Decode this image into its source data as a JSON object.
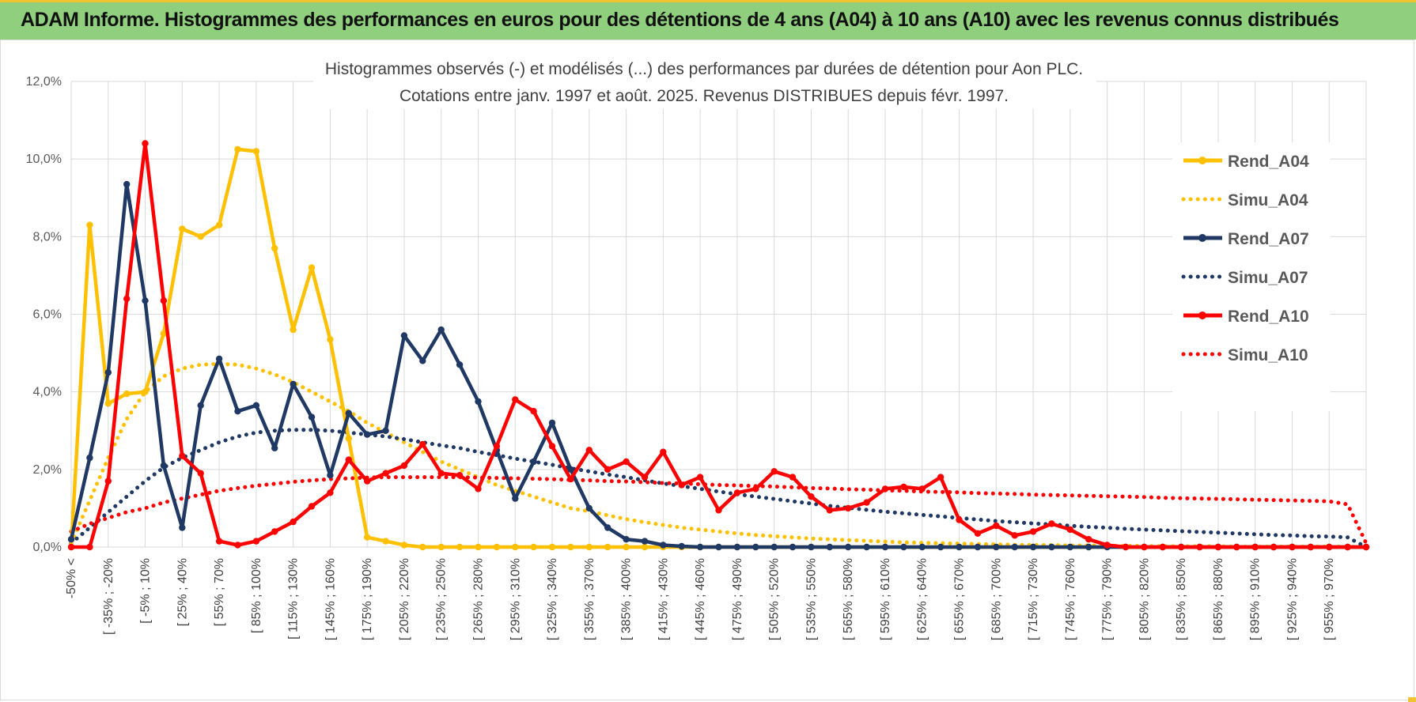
{
  "header": {
    "title": "ADAM Informe. Histogrammes des performances en euros pour des détentions de 4 ans (A04) à 10 ans (A10) avec les revenus connus distribués"
  },
  "colors": {
    "banner": "#8fcf7e",
    "a04": "#ffc000",
    "a07": "#1f3864",
    "a10": "#ff0000",
    "grid": "#d9d9d9"
  },
  "chart_data": {
    "type": "line",
    "title": "Histogrammes observés (-) et modélisés (...) des performances par durées de détention pour Aon PLC.",
    "subtitle": "Cotations entre janv. 1997 et août. 2025. Revenus DISTRIBUES depuis févr. 1997.",
    "ylim": [
      0,
      12
    ],
    "y_ticks": [
      "0,0%",
      "2,0%",
      "4,0%",
      "6,0%",
      "8,0%",
      "10,0%",
      "12,0%"
    ],
    "grid": true,
    "legend_position": "right",
    "x_tick_labels": [
      "-50% <",
      "[ -35% ; -20%",
      "[ -5% ; 10%",
      "[ 25% ; 40%",
      "[ 55% ; 70%",
      "[ 85% ; 100%",
      "[ 115% ; 130%",
      "[ 145% ; 160%",
      "[ 175% ; 190%",
      "[ 205% ; 220%",
      "[ 235% ; 250%",
      "[ 265% ; 280%",
      "[ 295% ; 310%",
      "[ 325% ; 340%",
      "[ 355% ; 370%",
      "[ 385% ; 400%",
      "[ 415% ; 430%",
      "[ 445% ; 460%",
      "[ 475% ; 490%",
      "[ 505% ; 520%",
      "[ 535% ; 550%",
      "[ 565% ; 580%",
      "[ 595% ; 610%",
      "[ 625% ; 640%",
      "[ 655% ; 670%",
      "[ 685% ; 700%",
      "[ 715% ; 730%",
      "[ 745% ; 760%",
      "[ 775% ; 790%",
      "[ 805% ; 820%",
      "[ 835% ; 850%",
      "[ 865% ; 880%",
      "[ 895% ; 910%",
      "[ 925% ; 940%",
      "[ 955% ; 970%"
    ],
    "series": [
      {
        "name": "Rend_A04",
        "style": "solid",
        "color": "#ffc000",
        "values": [
          0,
          8.3,
          3.7,
          3.95,
          4.0,
          5.5,
          8.2,
          8.0,
          8.3,
          10.25,
          10.2,
          7.7,
          5.6,
          7.2,
          5.35,
          2.8,
          0.25,
          0.15,
          0.05,
          0,
          0,
          0,
          0,
          0,
          0,
          0,
          0,
          0,
          0,
          0,
          0,
          0,
          0,
          0,
          0,
          0,
          0,
          0,
          0,
          0,
          0,
          0,
          0,
          0,
          0,
          0,
          0,
          0,
          0,
          0,
          0,
          0,
          0,
          0,
          0,
          0,
          0,
          0,
          0,
          0,
          0,
          0,
          0,
          0,
          0,
          0,
          0,
          0,
          0,
          0,
          0
        ]
      },
      {
        "name": "Simu_A04",
        "style": "dotted",
        "color": "#ffc000",
        "values": [
          0.1,
          1.2,
          2.3,
          3.3,
          4.0,
          4.4,
          4.6,
          4.7,
          4.72,
          4.7,
          4.6,
          4.45,
          4.25,
          4.0,
          3.75,
          3.5,
          3.2,
          2.95,
          2.7,
          2.45,
          2.2,
          2.0,
          1.8,
          1.6,
          1.45,
          1.3,
          1.15,
          1.0,
          0.92,
          0.82,
          0.72,
          0.64,
          0.57,
          0.5,
          0.45,
          0.4,
          0.35,
          0.31,
          0.28,
          0.25,
          0.22,
          0.2,
          0.18,
          0.16,
          0.14,
          0.12,
          0.11,
          0.1,
          0.09,
          0.08,
          0.07,
          0.06,
          0.05,
          0.05,
          0.04,
          0.04,
          0.03,
          0.03,
          0.03,
          0.02,
          0.02,
          0.02,
          0.02,
          0.01,
          0.01,
          0.01,
          0.01,
          0.01,
          0.01,
          0.01,
          0
        ]
      },
      {
        "name": "Rend_A07",
        "style": "solid",
        "color": "#1f3864",
        "values": [
          0.2,
          2.3,
          4.5,
          9.35,
          6.35,
          2.1,
          0.5,
          3.65,
          4.85,
          3.5,
          3.65,
          2.55,
          4.2,
          3.35,
          1.85,
          3.45,
          2.9,
          3.0,
          5.45,
          4.8,
          5.6,
          4.7,
          3.75,
          2.5,
          1.25,
          2.2,
          3.2,
          2.0,
          1.0,
          0.5,
          0.2,
          0.15,
          0.05,
          0.02,
          0,
          0,
          0,
          0,
          0,
          0,
          0,
          0,
          0,
          0,
          0,
          0,
          0,
          0,
          0,
          0,
          0,
          0,
          0,
          0,
          0,
          0,
          0,
          0,
          0,
          0,
          0,
          0,
          0,
          0,
          0,
          0,
          0,
          0,
          0,
          0,
          0
        ]
      },
      {
        "name": "Simu_A07",
        "style": "dotted",
        "color": "#1f3864",
        "values": [
          0.1,
          0.5,
          0.9,
          1.3,
          1.7,
          2.05,
          2.3,
          2.5,
          2.7,
          2.85,
          2.95,
          3.0,
          3.02,
          3.02,
          3.0,
          2.95,
          2.9,
          2.85,
          2.78,
          2.7,
          2.62,
          2.55,
          2.45,
          2.37,
          2.28,
          2.2,
          2.12,
          2.03,
          1.95,
          1.87,
          1.8,
          1.72,
          1.64,
          1.57,
          1.5,
          1.43,
          1.36,
          1.3,
          1.24,
          1.18,
          1.12,
          1.06,
          1.01,
          0.96,
          0.91,
          0.87,
          0.83,
          0.79,
          0.75,
          0.71,
          0.67,
          0.64,
          0.61,
          0.58,
          0.55,
          0.52,
          0.5,
          0.47,
          0.45,
          0.43,
          0.41,
          0.39,
          0.37,
          0.35,
          0.33,
          0.31,
          0.3,
          0.28,
          0.27,
          0.25,
          0
        ]
      },
      {
        "name": "Rend_A10",
        "style": "solid",
        "color": "#ff0000",
        "values": [
          0,
          0,
          1.7,
          6.4,
          10.4,
          6.35,
          2.35,
          1.9,
          0.15,
          0.05,
          0.15,
          0.4,
          0.65,
          1.05,
          1.4,
          2.25,
          1.7,
          1.9,
          2.1,
          2.65,
          1.9,
          1.85,
          1.5,
          2.6,
          3.8,
          3.5,
          2.6,
          1.75,
          2.5,
          2.0,
          2.2,
          1.8,
          2.45,
          1.6,
          1.8,
          0.95,
          1.4,
          1.5,
          1.95,
          1.8,
          1.3,
          0.95,
          1.0,
          1.15,
          1.5,
          1.55,
          1.5,
          1.8,
          0.7,
          0.35,
          0.55,
          0.3,
          0.4,
          0.6,
          0.45,
          0.2,
          0.05,
          0,
          0,
          0,
          0,
          0,
          0,
          0,
          0,
          0,
          0,
          0,
          0,
          0,
          0
        ]
      },
      {
        "name": "Simu_A10",
        "style": "dotted",
        "color": "#ff0000",
        "values": [
          0.4,
          0.6,
          0.75,
          0.9,
          1.0,
          1.15,
          1.25,
          1.35,
          1.45,
          1.52,
          1.58,
          1.63,
          1.68,
          1.72,
          1.75,
          1.77,
          1.79,
          1.8,
          1.8,
          1.8,
          1.8,
          1.8,
          1.79,
          1.78,
          1.77,
          1.76,
          1.75,
          1.73,
          1.72,
          1.7,
          1.69,
          1.67,
          1.65,
          1.64,
          1.62,
          1.6,
          1.59,
          1.57,
          1.56,
          1.54,
          1.52,
          1.51,
          1.49,
          1.48,
          1.46,
          1.45,
          1.43,
          1.42,
          1.41,
          1.39,
          1.38,
          1.37,
          1.35,
          1.34,
          1.33,
          1.32,
          1.31,
          1.3,
          1.29,
          1.27,
          1.26,
          1.25,
          1.24,
          1.23,
          1.22,
          1.21,
          1.2,
          1.19,
          1.18,
          1.1,
          0.1
        ]
      }
    ]
  }
}
